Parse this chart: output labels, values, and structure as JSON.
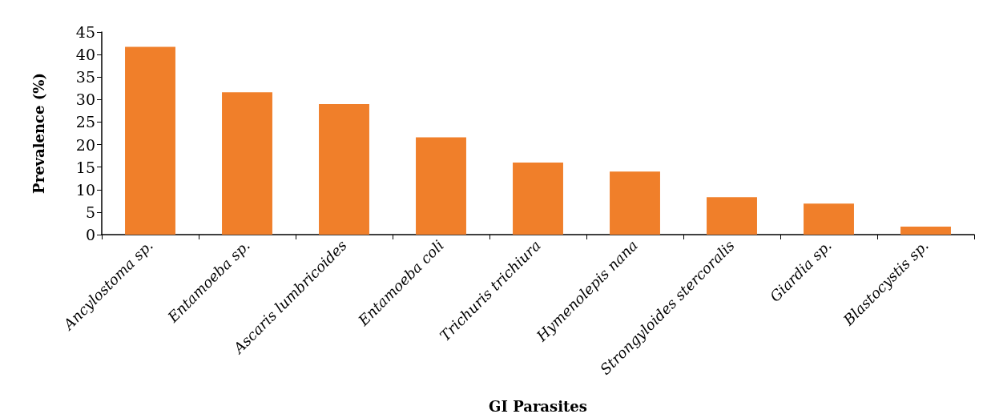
{
  "chart_data": {
    "type": "bar",
    "xlabel": "GI Parasites",
    "ylabel": "Prevalence (%)",
    "categories": [
      "Ancylostoma sp.",
      "Entamoeba sp.",
      "Ascaris lumbricoides",
      "Entamoeba coli",
      "Trichuris trichiura",
      "Hymenolepis nana",
      "Strongyloides stercoralis",
      "Giardia sp.",
      "Blastocystis sp."
    ],
    "values": [
      41.7,
      31.6,
      29.0,
      21.6,
      16.0,
      14.0,
      8.3,
      6.9,
      1.8
    ],
    "color": "#f07f2a",
    "ylim": [
      0,
      45
    ],
    "yticks": [
      0,
      5,
      10,
      15,
      20,
      25,
      30,
      35,
      40,
      45
    ],
    "grid": false
  }
}
